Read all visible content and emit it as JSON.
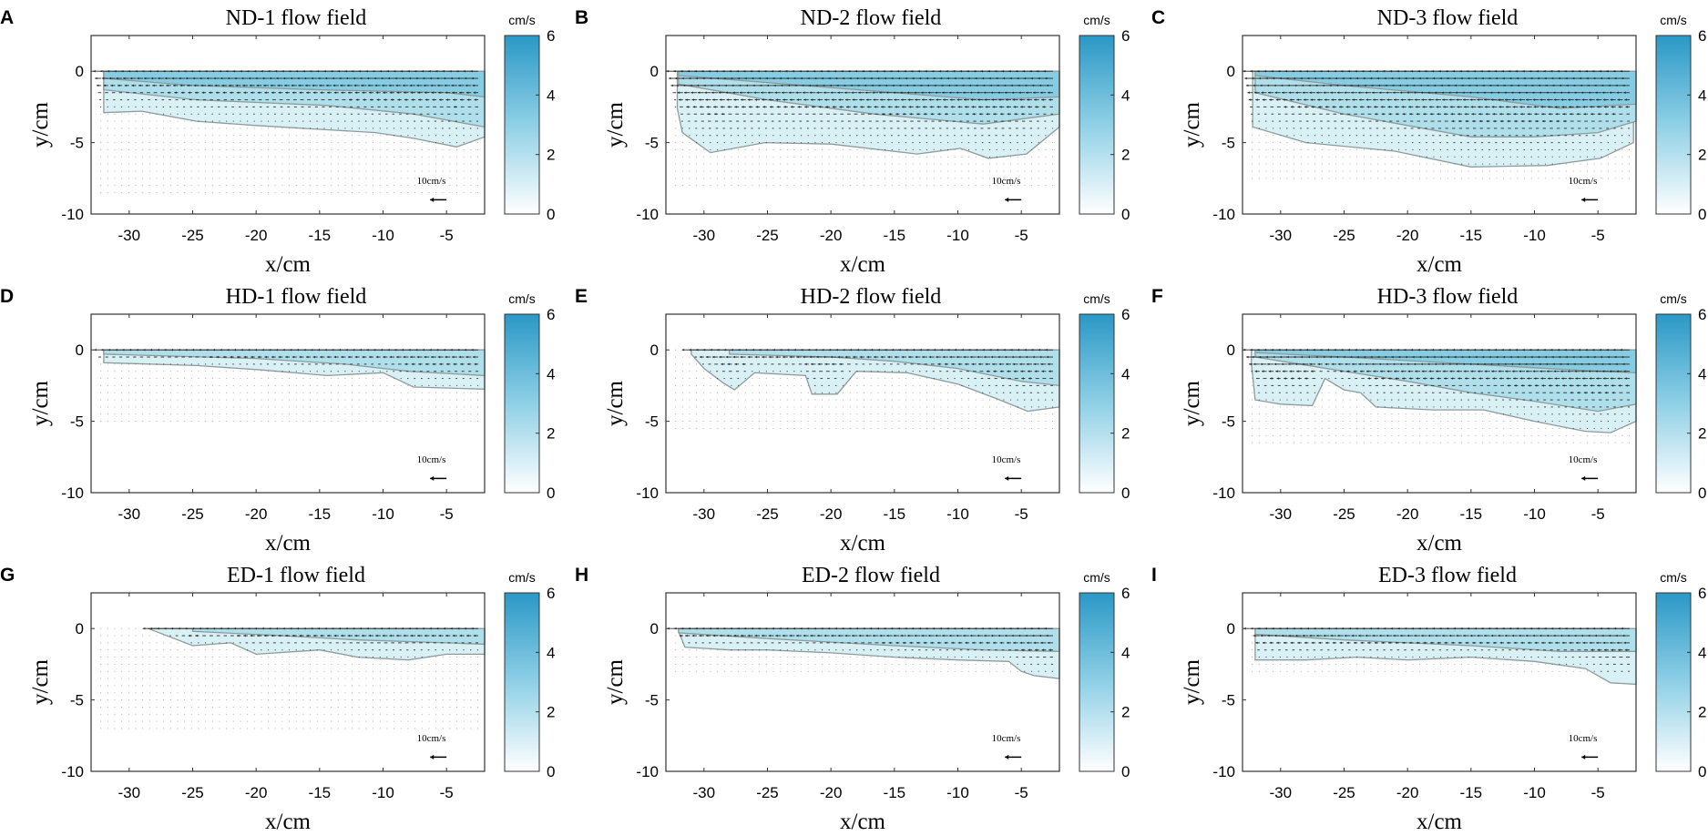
{
  "chart_data": [
    {
      "label": "A",
      "title": "ND-1 flow field",
      "type": "quiver-contour",
      "xlabel": "x/cm",
      "ylabel": "y/cm",
      "xlim": [
        -33,
        -2
      ],
      "ylim": [
        -10,
        2.5
      ],
      "xticks": [
        -30,
        -25,
        -20,
        -15,
        -10,
        -5
      ],
      "yticks": [
        -10,
        -5,
        0
      ],
      "colorbar": {
        "unit": "cm/s",
        "range": [
          0,
          6
        ],
        "ticks": [
          0,
          2,
          4,
          6
        ]
      },
      "reference_vector": {
        "label": "10cm/s",
        "magnitude": 10
      },
      "vector_region_depth": -8.5,
      "max_speed": 4.5,
      "contours": [
        [
          [
            -32,
            -2.9
          ],
          [
            -29,
            -2.8
          ],
          [
            -24.7,
            -3.5
          ],
          [
            -20,
            -3.8
          ],
          [
            -14.4,
            -4.1
          ],
          [
            -10.6,
            -4.3
          ],
          [
            -7.6,
            -4.7
          ],
          [
            -4.2,
            -5.3
          ],
          [
            -2,
            -4.6
          ]
        ],
        [
          [
            -32,
            -1.3
          ],
          [
            -24.7,
            -2.0
          ],
          [
            -14.4,
            -2.4
          ],
          [
            -7.6,
            -3.0
          ],
          [
            -2,
            -3.9
          ]
        ],
        [
          [
            -32,
            -0.5
          ],
          [
            -25,
            -1.0
          ],
          [
            -15,
            -1.3
          ],
          [
            -5,
            -1.5
          ],
          [
            -2,
            -1.8
          ]
        ]
      ]
    },
    {
      "label": "B",
      "title": "ND-2 flow field",
      "type": "quiver-contour",
      "xlabel": "x/cm",
      "ylabel": "y/cm",
      "xlim": [
        -33,
        -2
      ],
      "ylim": [
        -10,
        2.5
      ],
      "xticks": [
        -30,
        -25,
        -20,
        -15,
        -10,
        -5
      ],
      "yticks": [
        -10,
        -5,
        0
      ],
      "colorbar": {
        "unit": "cm/s",
        "range": [
          0,
          6
        ],
        "ticks": [
          0,
          2,
          4,
          6
        ]
      },
      "reference_vector": {
        "label": "10cm/s",
        "magnitude": 10
      },
      "vector_region_depth": -8,
      "max_speed": 5.5,
      "contours": [
        [
          [
            -32.1,
            -2.6
          ],
          [
            -31.7,
            -4.3
          ],
          [
            -29.5,
            -5.7
          ],
          [
            -25.2,
            -5.0
          ],
          [
            -20,
            -5.1
          ],
          [
            -13.2,
            -5.8
          ],
          [
            -9.8,
            -5.4
          ],
          [
            -7.6,
            -6.1
          ],
          [
            -4.6,
            -5.8
          ],
          [
            -2,
            -3.9
          ]
        ],
        [
          [
            -32,
            -0.9
          ],
          [
            -25,
            -2.0
          ],
          [
            -16.6,
            -3.0
          ],
          [
            -8,
            -3.7
          ],
          [
            -2,
            -3.0
          ]
        ],
        [
          [
            -32,
            -0.3
          ],
          [
            -25,
            -0.8
          ],
          [
            -15,
            -1.5
          ],
          [
            -8,
            -2.0
          ],
          [
            -2,
            -1.8
          ]
        ]
      ]
    },
    {
      "label": "C",
      "title": "ND-3 flow field",
      "type": "quiver-contour",
      "xlabel": "x/cm",
      "ylabel": "y/cm",
      "xlim": [
        -33,
        -2
      ],
      "ylim": [
        -10,
        2.5
      ],
      "xticks": [
        -30,
        -25,
        -20,
        -15,
        -10,
        -5
      ],
      "yticks": [
        -10,
        -5,
        0
      ],
      "colorbar": {
        "unit": "cm/s",
        "range": [
          0,
          6
        ],
        "ticks": [
          0,
          2,
          4,
          6
        ]
      },
      "reference_vector": {
        "label": "10cm/s",
        "magnitude": 10
      },
      "vector_region_depth": -7.5,
      "max_speed": 5.5,
      "contours": [
        [
          [
            -32.2,
            -3.9
          ],
          [
            -28,
            -5.0
          ],
          [
            -21,
            -5.6
          ],
          [
            -15,
            -6.7
          ],
          [
            -9,
            -6.6
          ],
          [
            -4.8,
            -6.1
          ],
          [
            -2.2,
            -5.0
          ]
        ],
        [
          [
            -32,
            -1.5
          ],
          [
            -25,
            -3.0
          ],
          [
            -20,
            -3.8
          ],
          [
            -15,
            -4.6
          ],
          [
            -10,
            -4.6
          ],
          [
            -5,
            -4.3
          ],
          [
            -2,
            -3.5
          ]
        ],
        [
          [
            -32,
            -0.3
          ],
          [
            -25,
            -1.0
          ],
          [
            -15,
            -1.8
          ],
          [
            -8,
            -2.6
          ],
          [
            -2,
            -2.3
          ]
        ]
      ]
    },
    {
      "label": "D",
      "title": "HD-1 flow field",
      "type": "quiver-contour",
      "xlabel": "x/cm",
      "ylabel": "y/cm",
      "xlim": [
        -33,
        -2
      ],
      "ylim": [
        -10,
        2.5
      ],
      "xticks": [
        -30,
        -25,
        -20,
        -15,
        -10,
        -5
      ],
      "yticks": [
        -10,
        -5,
        0
      ],
      "colorbar": {
        "unit": "cm/s",
        "range": [
          0,
          6
        ],
        "ticks": [
          0,
          2,
          4,
          6
        ]
      },
      "reference_vector": {
        "label": "10cm/s",
        "magnitude": 10
      },
      "vector_region_depth": -5,
      "max_speed": 4,
      "contours": [
        [
          [
            -32,
            -0.9
          ],
          [
            -24.7,
            -1.1
          ],
          [
            -19.6,
            -1.4
          ],
          [
            -14.4,
            -1.8
          ],
          [
            -10,
            -1.6
          ],
          [
            -7.6,
            -2.6
          ],
          [
            -2,
            -2.75
          ]
        ],
        [
          [
            -32,
            -0.3
          ],
          [
            -20,
            -0.6
          ],
          [
            -13,
            -1.0
          ],
          [
            -8,
            -1.5
          ],
          [
            -2,
            -1.8
          ]
        ]
      ]
    },
    {
      "label": "E",
      "title": "HD-2 flow field",
      "type": "quiver-contour",
      "xlabel": "x/cm",
      "ylabel": "y/cm",
      "xlim": [
        -33,
        -2
      ],
      "ylim": [
        -10,
        2.5
      ],
      "xticks": [
        -30,
        -25,
        -20,
        -15,
        -10,
        -5
      ],
      "yticks": [
        -10,
        -5,
        0
      ],
      "colorbar": {
        "unit": "cm/s",
        "range": [
          0,
          6
        ],
        "ticks": [
          0,
          2,
          4,
          6
        ]
      },
      "reference_vector": {
        "label": "10cm/s",
        "magnitude": 10
      },
      "vector_region_depth": -5.5,
      "max_speed": 4.5,
      "contours": [
        [
          [
            -31,
            -0.3
          ],
          [
            -30,
            -1.3
          ],
          [
            -28.5,
            -2.3
          ],
          [
            -27.6,
            -2.8
          ],
          [
            -26,
            -1.6
          ],
          [
            -22,
            -1.8
          ],
          [
            -21.5,
            -3.1
          ],
          [
            -19.5,
            -3.1
          ],
          [
            -18,
            -1.5
          ],
          [
            -14,
            -1.6
          ],
          [
            -10,
            -2.4
          ],
          [
            -7,
            -3.4
          ],
          [
            -4.5,
            -4.3
          ],
          [
            -2,
            -4.0
          ]
        ],
        [
          [
            -28,
            -0.3
          ],
          [
            -20,
            -0.5
          ],
          [
            -15,
            -0.8
          ],
          [
            -10,
            -1.3
          ],
          [
            -5,
            -2.2
          ],
          [
            -2,
            -2.5
          ]
        ]
      ]
    },
    {
      "label": "F",
      "title": "HD-3 flow field",
      "type": "quiver-contour",
      "xlabel": "x/cm",
      "ylabel": "y/cm",
      "xlim": [
        -33,
        -2
      ],
      "ylim": [
        -10,
        2.5
      ],
      "xticks": [
        -30,
        -25,
        -20,
        -15,
        -10,
        -5
      ],
      "yticks": [
        -10,
        -5,
        0
      ],
      "colorbar": {
        "unit": "cm/s",
        "range": [
          0,
          6
        ],
        "ticks": [
          0,
          2,
          4,
          6
        ]
      },
      "reference_vector": {
        "label": "10cm/s",
        "magnitude": 10
      },
      "vector_region_depth": -6.5,
      "max_speed": 5.5,
      "contours": [
        [
          [
            -32.3,
            -1.0
          ],
          [
            -32,
            -3.5
          ],
          [
            -30,
            -3.8
          ],
          [
            -27.5,
            -3.9
          ],
          [
            -26.5,
            -2.0
          ],
          [
            -25,
            -2.8
          ],
          [
            -23.7,
            -3.0
          ],
          [
            -22.5,
            -4.0
          ],
          [
            -18,
            -4.2
          ],
          [
            -14,
            -4.2
          ],
          [
            -10,
            -5.0
          ],
          [
            -6,
            -5.7
          ],
          [
            -4,
            -5.8
          ],
          [
            -2,
            -5.0
          ]
        ],
        [
          [
            -32,
            -0.5
          ],
          [
            -25,
            -1.5
          ],
          [
            -20,
            -2.2
          ],
          [
            -15,
            -3.0
          ],
          [
            -10,
            -3.6
          ],
          [
            -5,
            -4.3
          ],
          [
            -2,
            -3.8
          ]
        ],
        [
          [
            -32,
            -0.2
          ],
          [
            -25,
            -0.5
          ],
          [
            -15,
            -1.0
          ],
          [
            -5,
            -1.5
          ],
          [
            -2,
            -1.6
          ]
        ]
      ]
    },
    {
      "label": "G",
      "title": "ED-1 flow field",
      "type": "quiver-contour",
      "xlabel": "x/cm",
      "ylabel": "y/cm",
      "xlim": [
        -33,
        -2
      ],
      "ylim": [
        -10,
        2.5
      ],
      "xticks": [
        -30,
        -25,
        -20,
        -15,
        -10,
        -5
      ],
      "yticks": [
        -10,
        -5,
        0
      ],
      "colorbar": {
        "unit": "cm/s",
        "range": [
          0,
          6
        ],
        "ticks": [
          0,
          2,
          4,
          6
        ]
      },
      "reference_vector": {
        "label": "10cm/s",
        "magnitude": 10
      },
      "vector_region_depth": -7,
      "max_speed": 4,
      "contours": [
        [
          [
            -28.5,
            0
          ],
          [
            -25,
            -1.2
          ],
          [
            -22,
            -1.0
          ],
          [
            -20,
            -1.8
          ],
          [
            -15,
            -1.5
          ],
          [
            -12,
            -2.0
          ],
          [
            -8,
            -2.2
          ],
          [
            -5,
            -1.8
          ],
          [
            -2,
            -1.8
          ]
        ],
        [
          [
            -25,
            -0.2
          ],
          [
            -18,
            -0.5
          ],
          [
            -12,
            -0.8
          ],
          [
            -5,
            -1.0
          ],
          [
            -2,
            -1.1
          ]
        ]
      ]
    },
    {
      "label": "H",
      "title": "ED-2 flow field",
      "type": "quiver-contour",
      "xlabel": "x/cm",
      "ylabel": "y/cm",
      "xlim": [
        -33,
        -2
      ],
      "ylim": [
        -10,
        2.5
      ],
      "xticks": [
        -30,
        -25,
        -20,
        -15,
        -10,
        -5
      ],
      "yticks": [
        -10,
        -5,
        0
      ],
      "colorbar": {
        "unit": "cm/s",
        "range": [
          0,
          6
        ],
        "ticks": [
          0,
          2,
          4,
          6
        ]
      },
      "reference_vector": {
        "label": "10cm/s",
        "magnitude": 10
      },
      "vector_region_depth": -3.3,
      "max_speed": 5,
      "contours": [
        [
          [
            -32,
            -0.2
          ],
          [
            -31.5,
            -1.3
          ],
          [
            -28,
            -1.5
          ],
          [
            -25,
            -1.5
          ],
          [
            -20,
            -1.7
          ],
          [
            -15,
            -2.0
          ],
          [
            -10,
            -2.2
          ],
          [
            -6,
            -2.3
          ],
          [
            -5,
            -3.0
          ],
          [
            -4,
            -3.3
          ],
          [
            -2,
            -3.5
          ]
        ],
        [
          [
            -32,
            -0.3
          ],
          [
            -25,
            -0.7
          ],
          [
            -15,
            -1.2
          ],
          [
            -8,
            -1.5
          ],
          [
            -2,
            -1.6
          ]
        ]
      ]
    },
    {
      "label": "I",
      "title": "ED-3 flow field",
      "type": "quiver-contour",
      "xlabel": "x/cm",
      "ylabel": "y/cm",
      "xlim": [
        -33,
        -2
      ],
      "ylim": [
        -10,
        2.5
      ],
      "xticks": [
        -30,
        -25,
        -20,
        -15,
        -10,
        -5
      ],
      "yticks": [
        -10,
        -5,
        0
      ],
      "colorbar": {
        "unit": "cm/s",
        "range": [
          0,
          6
        ],
        "ticks": [
          0,
          2,
          4,
          6
        ]
      },
      "reference_vector": {
        "label": "10cm/s",
        "magnitude": 10
      },
      "vector_region_depth": -3.3,
      "max_speed": 5,
      "contours": [
        [
          [
            -32,
            -0.2
          ],
          [
            -32,
            -2.2
          ],
          [
            -28,
            -2.2
          ],
          [
            -24,
            -2.0
          ],
          [
            -20,
            -2.2
          ],
          [
            -15,
            -2.0
          ],
          [
            -10,
            -2.3
          ],
          [
            -6,
            -2.8
          ],
          [
            -4,
            -3.8
          ],
          [
            -2,
            -3.9
          ]
        ],
        [
          [
            -32,
            -0.4
          ],
          [
            -25,
            -0.8
          ],
          [
            -15,
            -1.2
          ],
          [
            -8,
            -1.6
          ],
          [
            -2,
            -1.6
          ]
        ]
      ]
    }
  ],
  "colors": {
    "colormap_low": "#ffffff",
    "colormap_mid": "#8fd0e6",
    "colormap_high": "#2a98c6",
    "contour_line": "#8c9c9c",
    "fills": [
      "#d9f0f5",
      "#b0dfec",
      "#86cde4"
    ],
    "arrow": "#222222"
  }
}
